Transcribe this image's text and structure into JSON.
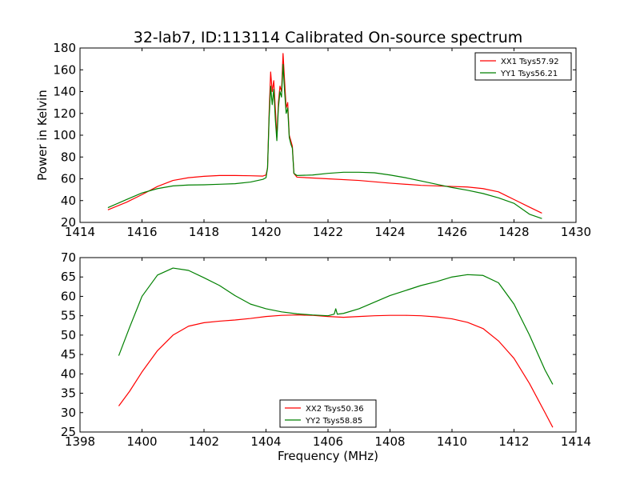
{
  "figure": {
    "title": "32-lab7, ID:113114 Calibrated On-source spectrum"
  },
  "colors": {
    "xx": "#ff0000",
    "yy": "#008000"
  },
  "chart_data": [
    {
      "type": "line",
      "xlabel": "",
      "ylabel": "Power in Kelvin",
      "xlim": [
        1414,
        1430
      ],
      "ylim": [
        20,
        180
      ],
      "xticks": [
        1414,
        1416,
        1418,
        1420,
        1422,
        1424,
        1426,
        1428,
        1430
      ],
      "yticks": [
        20,
        40,
        60,
        80,
        100,
        120,
        140,
        160,
        180
      ],
      "legend_position": "top-right",
      "series": [
        {
          "name": "XX1 Tsys57.92",
          "color": "#ff0000",
          "points": [
            [
              1414.9,
              31.5
            ],
            [
              1415.5,
              38.5
            ],
            [
              1416.0,
              45.5
            ],
            [
              1416.5,
              53.0
            ],
            [
              1417.0,
              58.5
            ],
            [
              1417.5,
              61.0
            ],
            [
              1418.0,
              62.3
            ],
            [
              1418.5,
              63.0
            ],
            [
              1419.0,
              63.0
            ],
            [
              1419.5,
              62.8
            ],
            [
              1419.9,
              62.5
            ],
            [
              1420.0,
              63.5
            ],
            [
              1420.05,
              70
            ],
            [
              1420.1,
              120
            ],
            [
              1420.15,
              158
            ],
            [
              1420.2,
              140
            ],
            [
              1420.25,
              150
            ],
            [
              1420.3,
              125
            ],
            [
              1420.35,
              98
            ],
            [
              1420.4,
              130
            ],
            [
              1420.45,
              145
            ],
            [
              1420.5,
              140
            ],
            [
              1420.55,
              175
            ],
            [
              1420.6,
              150
            ],
            [
              1420.65,
              125
            ],
            [
              1420.7,
              130
            ],
            [
              1420.75,
              100
            ],
            [
              1420.8,
              95
            ],
            [
              1420.85,
              90
            ],
            [
              1420.9,
              65
            ],
            [
              1421.0,
              61.5
            ],
            [
              1422.0,
              60.0
            ],
            [
              1423.0,
              58.5
            ],
            [
              1424.0,
              56.0
            ],
            [
              1425.0,
              54.0
            ],
            [
              1426.0,
              53.0
            ],
            [
              1426.5,
              52.5
            ],
            [
              1427.0,
              51.0
            ],
            [
              1427.5,
              48.0
            ],
            [
              1428.0,
              41.0
            ],
            [
              1428.5,
              34.0
            ],
            [
              1428.9,
              28.5
            ]
          ]
        },
        {
          "name": "YY1 Tsys56.21",
          "color": "#008000",
          "points": [
            [
              1414.9,
              33.5
            ],
            [
              1415.5,
              41.0
            ],
            [
              1416.0,
              47.0
            ],
            [
              1416.5,
              51.0
            ],
            [
              1417.0,
              53.5
            ],
            [
              1417.5,
              54.3
            ],
            [
              1418.0,
              54.5
            ],
            [
              1418.5,
              55.0
            ],
            [
              1419.0,
              55.5
            ],
            [
              1419.5,
              57.0
            ],
            [
              1419.9,
              59.5
            ],
            [
              1420.0,
              61.0
            ],
            [
              1420.05,
              70
            ],
            [
              1420.1,
              115
            ],
            [
              1420.15,
              145
            ],
            [
              1420.2,
              128
            ],
            [
              1420.25,
              142
            ],
            [
              1420.3,
              115
            ],
            [
              1420.35,
              95
            ],
            [
              1420.4,
              125
            ],
            [
              1420.45,
              140
            ],
            [
              1420.5,
              135
            ],
            [
              1420.55,
              165
            ],
            [
              1420.6,
              140
            ],
            [
              1420.65,
              120
            ],
            [
              1420.7,
              125
            ],
            [
              1420.75,
              98
            ],
            [
              1420.8,
              92
            ],
            [
              1420.85,
              88
            ],
            [
              1420.9,
              65
            ],
            [
              1421.0,
              63.0
            ],
            [
              1421.5,
              63.5
            ],
            [
              1422.0,
              65.0
            ],
            [
              1422.5,
              66.0
            ],
            [
              1423.0,
              66.0
            ],
            [
              1423.5,
              65.5
            ],
            [
              1424.0,
              63.5
            ],
            [
              1424.5,
              61.0
            ],
            [
              1425.0,
              58.0
            ],
            [
              1425.5,
              55.0
            ],
            [
              1426.0,
              52.0
            ],
            [
              1426.5,
              49.5
            ],
            [
              1427.0,
              46.5
            ],
            [
              1427.5,
              42.5
            ],
            [
              1428.0,
              37.5
            ],
            [
              1428.5,
              27.5
            ],
            [
              1428.9,
              23.5
            ]
          ]
        }
      ]
    },
    {
      "type": "line",
      "xlabel": "Frequency (MHz)",
      "ylabel": "",
      "xlim": [
        1398,
        1414
      ],
      "ylim": [
        25,
        70
      ],
      "xticks": [
        1398,
        1400,
        1402,
        1404,
        1406,
        1408,
        1410,
        1412,
        1414
      ],
      "yticks": [
        25,
        30,
        35,
        40,
        45,
        50,
        55,
        60,
        65,
        70
      ],
      "legend_position": "bottom-center",
      "series": [
        {
          "name": "XX2 Tsys50.36",
          "color": "#ff0000",
          "points": [
            [
              1399.25,
              31.7
            ],
            [
              1399.6,
              35.5
            ],
            [
              1400.0,
              40.5
            ],
            [
              1400.5,
              46.0
            ],
            [
              1401.0,
              50.0
            ],
            [
              1401.5,
              52.3
            ],
            [
              1402.0,
              53.2
            ],
            [
              1402.5,
              53.6
            ],
            [
              1403.0,
              53.9
            ],
            [
              1403.5,
              54.3
            ],
            [
              1404.0,
              54.8
            ],
            [
              1404.5,
              55.1
            ],
            [
              1405.0,
              55.2
            ],
            [
              1405.5,
              55.1
            ],
            [
              1406.0,
              54.8
            ],
            [
              1406.5,
              54.6
            ],
            [
              1407.0,
              54.8
            ],
            [
              1407.5,
              55.0
            ],
            [
              1408.0,
              55.1
            ],
            [
              1408.5,
              55.1
            ],
            [
              1409.0,
              55.0
            ],
            [
              1409.5,
              54.7
            ],
            [
              1410.0,
              54.2
            ],
            [
              1410.5,
              53.3
            ],
            [
              1411.0,
              51.7
            ],
            [
              1411.5,
              48.5
            ],
            [
              1412.0,
              44.0
            ],
            [
              1412.5,
              37.5
            ],
            [
              1413.0,
              30.0
            ],
            [
              1413.25,
              26.2
            ]
          ]
        },
        {
          "name": "YY2 Tsys58.85",
          "color": "#008000",
          "points": [
            [
              1399.25,
              44.7
            ],
            [
              1399.6,
              52.0
            ],
            [
              1400.0,
              60.0
            ],
            [
              1400.5,
              65.5
            ],
            [
              1401.0,
              67.3
            ],
            [
              1401.5,
              66.7
            ],
            [
              1402.0,
              64.8
            ],
            [
              1402.5,
              62.8
            ],
            [
              1403.0,
              60.2
            ],
            [
              1403.5,
              58.0
            ],
            [
              1404.0,
              56.8
            ],
            [
              1404.5,
              56.0
            ],
            [
              1405.0,
              55.5
            ],
            [
              1405.5,
              55.2
            ],
            [
              1406.0,
              55.0
            ],
            [
              1406.2,
              55.4
            ],
            [
              1406.25,
              56.8
            ],
            [
              1406.3,
              55.4
            ],
            [
              1406.5,
              55.6
            ],
            [
              1407.0,
              56.8
            ],
            [
              1407.5,
              58.5
            ],
            [
              1408.0,
              60.2
            ],
            [
              1408.5,
              61.5
            ],
            [
              1409.0,
              62.8
            ],
            [
              1409.5,
              63.8
            ],
            [
              1410.0,
              65.0
            ],
            [
              1410.5,
              65.6
            ],
            [
              1411.0,
              65.4
            ],
            [
              1411.5,
              63.5
            ],
            [
              1412.0,
              58.0
            ],
            [
              1412.5,
              50.0
            ],
            [
              1413.0,
              41.0
            ],
            [
              1413.25,
              37.3
            ]
          ]
        }
      ]
    }
  ]
}
